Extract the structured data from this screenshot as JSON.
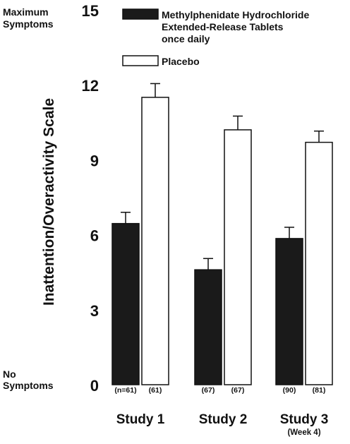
{
  "chart_data": {
    "type": "bar",
    "ylabel": "Inattention/Overactivity Scale",
    "ylim": [
      0,
      15
    ],
    "yticks": [
      0,
      3,
      6,
      9,
      12,
      15
    ],
    "y_top_label": [
      "Maximum",
      "Symptoms"
    ],
    "y_bottom_label": [
      "No",
      "Symptoms"
    ],
    "categories": [
      "Study 1",
      "Study 2",
      "Study 3"
    ],
    "category_sublabels": [
      "",
      "",
      "(Week 4)"
    ],
    "series": [
      {
        "name": "Methylphenidate Hydrochloride Extended-Release Tablets once daily",
        "legend_lines": [
          "Methylphenidate Hydrochloride",
          "Extended-Release Tablets",
          "once daily"
        ],
        "color": "#1a1a1a",
        "values": [
          6.45,
          4.6,
          5.85
        ],
        "errors": [
          0.45,
          0.45,
          0.45
        ],
        "n_labels": [
          "(n=61)",
          "(67)",
          "(90)"
        ]
      },
      {
        "name": "Placebo",
        "legend_lines": [
          "Placebo"
        ],
        "color": "#ffffff",
        "values": [
          11.5,
          10.2,
          9.7
        ],
        "errors": [
          0.55,
          0.55,
          0.45
        ],
        "n_labels": [
          "(61)",
          "(67)",
          "(81)"
        ]
      }
    ],
    "legend_position": "top-right",
    "grid": false
  }
}
